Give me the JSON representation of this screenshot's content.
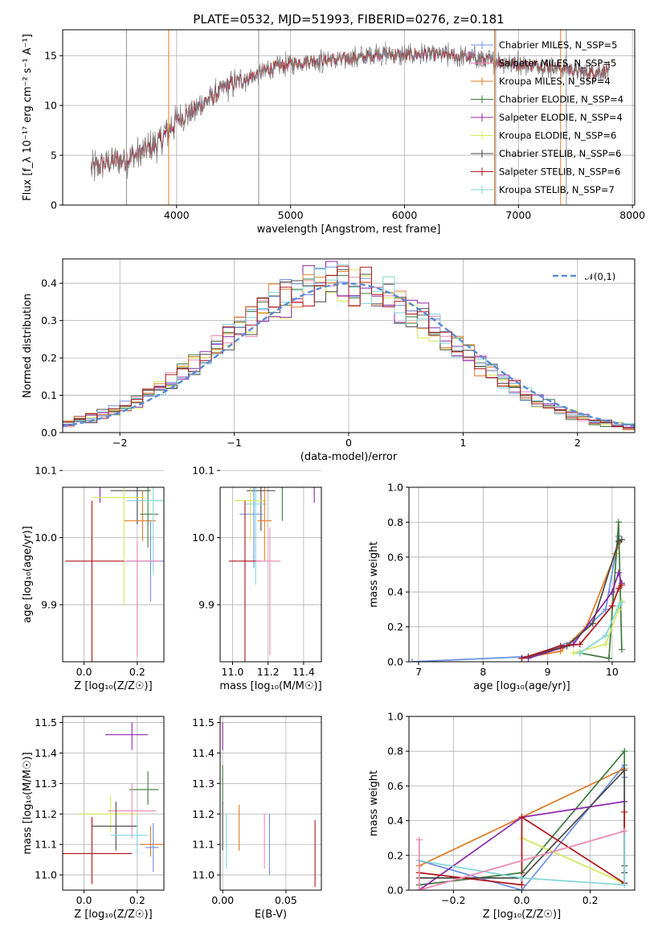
{
  "title": "PLATE=0532, MJD=51993, FIBERID=0276, z=0.181",
  "colors": [
    "#6b8fe6",
    "#e07b24",
    "#3e7a3e",
    "#8b25a9",
    "#d4e85a",
    "#4a4a4a",
    "#b0141a",
    "#7fd6d6",
    "#ee88b0"
  ],
  "legend": {
    "items": [
      "Chabrier MILES, N_SSP=5",
      "Salpeter MILES, N_SSP=5",
      "Kroupa MILES, N_SSP=4",
      "Chabrier ELODIE, N_SSP=4",
      "Salpeter ELODIE, N_SSP=4",
      "Kroupa ELODIE, N_SSP=6",
      "Chabrier STELIB, N_SSP=6",
      "Salpeter STELIB, N_SSP=6",
      "Kroupa STELIB, N_SSP=7"
    ],
    "normal_label": "𝒩(0,1)"
  },
  "chart_data": [
    {
      "type": "line",
      "id": "spectrum",
      "xlabel": "wavelength [Angstrom, rest frame]",
      "ylabel": "Flux [f_λ 10⁻¹⁷ erg cm⁻² s⁻¹ A⁻¹]",
      "xlim": [
        3000,
        8020
      ],
      "ylim": [
        0,
        17.6
      ],
      "xticks": [
        4000,
        5000,
        6000,
        7000,
        8000
      ],
      "yticks": [
        0,
        5,
        10,
        15
      ],
      "range": [
        3250,
        7800
      ],
      "envelope": [
        [
          3250,
          3.6
        ],
        [
          3400,
          4.3
        ],
        [
          3550,
          4.6
        ],
        [
          3700,
          5.3
        ],
        [
          3850,
          6.3
        ],
        [
          4000,
          8.5
        ],
        [
          4150,
          9.5
        ],
        [
          4300,
          10.8
        ],
        [
          4450,
          12.0
        ],
        [
          4600,
          12.6
        ],
        [
          4800,
          13.6
        ],
        [
          5000,
          14.2
        ],
        [
          5200,
          14.5
        ],
        [
          5400,
          14.6
        ],
        [
          5600,
          14.8
        ],
        [
          5800,
          15.2
        ],
        [
          6000,
          15.0
        ],
        [
          6200,
          15.2
        ],
        [
          6400,
          15.0
        ],
        [
          6600,
          14.8
        ],
        [
          6800,
          14.4
        ],
        [
          7000,
          14.2
        ],
        [
          7200,
          14.0
        ],
        [
          7400,
          13.7
        ],
        [
          7600,
          13.3
        ],
        [
          7800,
          13.5
        ]
      ],
      "spikes": [
        3560,
        3930,
        4720,
        6790,
        6800,
        7370,
        7420
      ],
      "grid": true
    },
    {
      "type": "step-histogram",
      "id": "residuals",
      "xlabel": "(data-model)/error",
      "ylabel": "Normed distribution",
      "xlim": [
        -2.5,
        2.5
      ],
      "ylim": [
        0,
        0.465
      ],
      "xticks": [
        -2,
        -1,
        0,
        1,
        2
      ],
      "yticks": [
        0.0,
        0.1,
        0.2,
        0.3,
        0.4
      ],
      "normal_curve": {
        "mu": 0,
        "sigma": 1
      },
      "bin_width": 0.1,
      "grid": true
    },
    {
      "type": "errorbar",
      "id": "age-vs-z",
      "xlabel": "Z [log₁₀(Z/Z☉)]",
      "ylabel": "age  [log₁₀(age/yr)]",
      "xlim": [
        -0.08,
        0.3
      ],
      "ylim": [
        9.815,
        10.075
      ],
      "xticks": [
        0.0,
        0.2
      ],
      "yticks": [
        9.9,
        10.0,
        10.1
      ],
      "points": [
        {
          "x": 0.06,
          "xerr": [
            0.06,
            0.05
          ],
          "y": 10.092,
          "yerr": [
            0.04,
            0.02
          ],
          "c": 3
        },
        {
          "x": 0.2,
          "xerr": [
            0.1,
            0.05
          ],
          "y": 10.07,
          "yerr": [
            0.05,
            0.03
          ],
          "c": 5
        },
        {
          "x": 0.22,
          "xerr": [
            0.07,
            0.05
          ],
          "y": 10.025,
          "yerr": [
            0.03,
            0.045
          ],
          "c": 1
        },
        {
          "x": 0.24,
          "xerr": [
            0.03,
            0.04
          ],
          "y": 10.035,
          "yerr": [
            0.05,
            0.04
          ],
          "c": 2
        },
        {
          "x": 0.15,
          "xerr": [
            0.12,
            0.08
          ],
          "y": 10.06,
          "yerr": [
            0.16,
            0.02
          ],
          "c": 4
        },
        {
          "x": 0.26,
          "xerr": [
            0.1,
            0.04
          ],
          "y": 10.055,
          "yerr": [
            0.11,
            0.02
          ],
          "c": 7
        },
        {
          "x": 0.25,
          "xerr": [
            0.09,
            0.05
          ],
          "y": 9.965,
          "yerr": [
            0.06,
            0.06
          ],
          "c": 0
        },
        {
          "x": 0.03,
          "xerr": [
            0.1,
            0.12
          ],
          "y": 9.965,
          "yerr": [
            0.15,
            0.09
          ],
          "c": 6
        },
        {
          "x": 0.2,
          "xerr": [
            0.05,
            0.09
          ],
          "y": 9.965,
          "yerr": [
            0.14,
            0.03
          ],
          "c": 8
        }
      ]
    },
    {
      "type": "errorbar",
      "id": "age-vs-mass",
      "xlabel": "mass [log₁₀(M/M☉)]",
      "ylabel": "",
      "xlim": [
        10.93,
        11.5
      ],
      "ylim": [
        9.815,
        10.075
      ],
      "xticks": [
        11.0,
        11.2,
        11.4
      ],
      "yticks": [
        9.9,
        10.0,
        10.1
      ],
      "points": [
        {
          "x": 11.46,
          "xerr": [
            0.05,
            0.04
          ],
          "y": 10.092,
          "yerr": [
            0.04,
            0.02
          ],
          "c": 3
        },
        {
          "x": 11.28,
          "xerr": [
            0.05,
            0.06
          ],
          "y": 10.075,
          "yerr": [
            0.05,
            0.05
          ],
          "c": 2
        },
        {
          "x": 11.16,
          "xerr": [
            0.08,
            0.08
          ],
          "y": 10.07,
          "yerr": [
            0.06,
            0.03
          ],
          "c": 5
        },
        {
          "x": 11.12,
          "xerr": [
            0.08,
            0.05
          ],
          "y": 10.035,
          "yerr": [
            0.08,
            0.06
          ],
          "c": 0
        },
        {
          "x": 11.1,
          "xerr": [
            0.09,
            0.09
          ],
          "y": 10.055,
          "yerr": [
            0.06,
            0.03
          ],
          "c": 4
        },
        {
          "x": 11.13,
          "xerr": [
            0.06,
            0.06
          ],
          "y": 10.05,
          "yerr": [
            0.12,
            0.05
          ],
          "c": 7
        },
        {
          "x": 11.18,
          "xerr": [
            0.04,
            0.04
          ],
          "y": 10.025,
          "yerr": [
            0.06,
            0.05
          ],
          "c": 1
        },
        {
          "x": 11.07,
          "xerr": [
            0.09,
            0.09
          ],
          "y": 9.965,
          "yerr": [
            0.15,
            0.09
          ],
          "c": 6
        },
        {
          "x": 11.21,
          "xerr": [
            0.08,
            0.06
          ],
          "y": 9.965,
          "yerr": [
            0.14,
            0.05
          ],
          "c": 8
        }
      ]
    },
    {
      "type": "line",
      "id": "mass-weight-age",
      "xlabel": "age  [log₁₀(age/yr)]",
      "ylabel": "mass weight",
      "xlim": [
        6.85,
        10.35
      ],
      "ylim": [
        0,
        1.0
      ],
      "xticks": [
        7,
        8,
        9,
        10
      ],
      "yticks": [
        0.0,
        0.2,
        0.4,
        0.6,
        0.8,
        1.0
      ],
      "series": [
        {
          "c": 0,
          "points": [
            [
              6.9,
              0.0
            ],
            [
              8.7,
              0.03
            ],
            [
              9.4,
              0.12
            ],
            [
              9.9,
              0.3
            ],
            [
              10.1,
              0.72
            ]
          ]
        },
        {
          "c": 1,
          "points": [
            [
              8.6,
              0.02
            ],
            [
              9.2,
              0.06
            ],
            [
              9.6,
              0.2
            ],
            [
              10.05,
              0.62
            ],
            [
              10.15,
              0.7
            ]
          ]
        },
        {
          "c": 2,
          "points": [
            [
              9.5,
              0.05
            ],
            [
              9.95,
              0.02
            ],
            [
              10.1,
              0.8
            ],
            [
              10.15,
              0.07
            ]
          ]
        },
        {
          "c": 3,
          "points": [
            [
              8.7,
              0.02
            ],
            [
              9.4,
              0.1
            ],
            [
              10.0,
              0.4
            ],
            [
              10.1,
              0.51
            ],
            [
              10.15,
              0.45
            ]
          ]
        },
        {
          "c": 4,
          "points": [
            [
              9.4,
              0.05
            ],
            [
              9.9,
              0.1
            ],
            [
              10.1,
              0.3
            ],
            [
              10.15,
              0.35
            ]
          ]
        },
        {
          "c": 5,
          "points": [
            [
              8.7,
              0.03
            ],
            [
              9.3,
              0.09
            ],
            [
              9.7,
              0.22
            ],
            [
              10.1,
              0.69
            ],
            [
              10.15,
              0.7
            ]
          ]
        },
        {
          "c": 6,
          "points": [
            [
              8.6,
              0.02
            ],
            [
              9.2,
              0.09
            ],
            [
              9.5,
              0.1
            ],
            [
              10.0,
              0.32
            ],
            [
              10.1,
              0.42
            ],
            [
              10.15,
              0.44
            ]
          ]
        },
        {
          "c": 7,
          "points": [
            [
              9.5,
              0.05
            ],
            [
              9.9,
              0.15
            ],
            [
              10.1,
              0.32
            ],
            [
              10.15,
              0.34
            ]
          ]
        }
      ]
    },
    {
      "type": "errorbar",
      "id": "mass-vs-z",
      "xlabel": "Z [log₁₀(Z/Z☉)]",
      "ylabel": "mass [log₁₀(M/M☉)]",
      "xlim": [
        -0.08,
        0.3
      ],
      "ylim": [
        10.95,
        11.52
      ],
      "xticks": [
        0.0,
        0.2
      ],
      "yticks": [
        11.0,
        11.1,
        11.2,
        11.3,
        11.4,
        11.5
      ],
      "points": [
        {
          "x": 0.18,
          "xerr": [
            0.1,
            0.06
          ],
          "y": 11.46,
          "yerr": [
            0.05,
            0.04
          ],
          "c": 3
        },
        {
          "x": 0.24,
          "xerr": [
            0.07,
            0.04
          ],
          "y": 11.28,
          "yerr": [
            0.05,
            0.06
          ],
          "c": 2
        },
        {
          "x": 0.1,
          "xerr": [
            0.12,
            0.1
          ],
          "y": 11.2,
          "yerr": [
            0.06,
            0.06
          ],
          "c": 4
        },
        {
          "x": 0.18,
          "xerr": [
            0.09,
            0.09
          ],
          "y": 11.21,
          "yerr": [
            0.09,
            0.09
          ],
          "c": 8
        },
        {
          "x": 0.12,
          "xerr": [
            0.09,
            0.08
          ],
          "y": 11.16,
          "yerr": [
            0.08,
            0.08
          ],
          "c": 5
        },
        {
          "x": 0.2,
          "xerr": [
            0.1,
            0.04
          ],
          "y": 11.13,
          "yerr": [
            0.06,
            0.06
          ],
          "c": 7
        },
        {
          "x": 0.25,
          "xerr": [
            0.04,
            0.05
          ],
          "y": 11.1,
          "yerr": [
            0.04,
            0.06
          ],
          "c": 1
        },
        {
          "x": 0.26,
          "xerr": [
            0.03,
            0.02
          ],
          "y": 11.09,
          "yerr": [
            0.08,
            0.08
          ],
          "c": 0
        },
        {
          "x": 0.03,
          "xerr": [
            0.12,
            0.15
          ],
          "y": 11.07,
          "yerr": [
            0.1,
            0.12
          ],
          "c": 6
        }
      ]
    },
    {
      "type": "errorbar",
      "id": "mass-vs-ebv",
      "xlabel": "E(B-V)",
      "ylabel": "",
      "xlim": [
        -0.002,
        0.078
      ],
      "ylim": [
        10.95,
        11.52
      ],
      "xticks": [
        0.0,
        0.05
      ],
      "yticks": [
        11.0,
        11.1,
        11.2,
        11.3,
        11.4,
        11.5
      ],
      "points": [
        {
          "x": 0.0,
          "y": 11.46,
          "yerr": [
            0.05,
            0.04
          ],
          "c": 3
        },
        {
          "x": 0.0,
          "y": 11.28,
          "yerr": [
            0.05,
            0.08
          ],
          "c": 2
        },
        {
          "x": 0.0,
          "y": 11.16,
          "yerr": [
            0.08,
            0.08
          ],
          "c": 5
        },
        {
          "x": 0.003,
          "y": 11.12,
          "yerr": [
            0.1,
            0.08
          ],
          "c": 7
        },
        {
          "x": 0.013,
          "y": 11.14,
          "yerr": [
            0.06,
            0.09
          ],
          "c": 1
        },
        {
          "x": 0.033,
          "y": 11.12,
          "yerr": [
            0.1,
            0.08
          ],
          "c": 8
        },
        {
          "x": 0.037,
          "y": 11.1,
          "yerr": [
            0.1,
            0.1
          ],
          "c": 0
        },
        {
          "x": 0.073,
          "y": 11.07,
          "yerr": [
            0.11,
            0.11
          ],
          "c": 6
        }
      ]
    },
    {
      "type": "line",
      "id": "mass-weight-z",
      "xlabel": "Z [log₁₀(Z/Z☉)]",
      "ylabel": "mass weight",
      "xlim": [
        -0.33,
        0.33
      ],
      "ylim": [
        0,
        1.0
      ],
      "xticks": [
        -0.2,
        0.0,
        0.2
      ],
      "yticks": [
        0.0,
        0.2,
        0.4,
        0.6,
        0.8,
        1.0
      ],
      "series": [
        {
          "c": 0,
          "points": [
            [
              -0.3,
              0.17
            ],
            [
              0.0,
              0.0
            ],
            [
              0.3,
              0.72
            ],
            [
              0.3,
              0.65
            ]
          ]
        },
        {
          "c": 1,
          "points": [
            [
              -0.3,
              0.14
            ],
            [
              0.0,
              0.42
            ],
            [
              0.3,
              0.7
            ]
          ]
        },
        {
          "c": 2,
          "points": [
            [
              -0.3,
              0.03
            ],
            [
              0.0,
              0.1
            ],
            [
              0.3,
              0.8
            ],
            [
              0.3,
              0.14
            ]
          ]
        },
        {
          "c": 3,
          "points": [
            [
              -0.3,
              0.0
            ],
            [
              0.0,
              0.42
            ],
            [
              0.3,
              0.51
            ]
          ]
        },
        {
          "c": 4,
          "points": [
            [
              0.0,
              0.3
            ],
            [
              0.3,
              0.04
            ]
          ]
        },
        {
          "c": 5,
          "points": [
            [
              -0.3,
              0.07
            ],
            [
              0.0,
              0.07
            ],
            [
              0.3,
              0.69
            ],
            [
              0.3,
              0.1
            ]
          ]
        },
        {
          "c": 6,
          "points": [
            [
              -0.3,
              0.1
            ],
            [
              0.0,
              0.03
            ],
            [
              0.0,
              0.42
            ],
            [
              0.3,
              0.04
            ],
            [
              0.3,
              0.45
            ]
          ]
        },
        {
          "c": 7,
          "points": [
            [
              -0.3,
              0.17
            ],
            [
              0.0,
              0.07
            ],
            [
              0.3,
              0.03
            ],
            [
              0.3,
              0.34
            ]
          ]
        },
        {
          "c": 8,
          "points": [
            [
              -0.3,
              0.29
            ],
            [
              -0.3,
              0.0
            ],
            [
              0.3,
              0.34
            ]
          ]
        }
      ]
    }
  ]
}
